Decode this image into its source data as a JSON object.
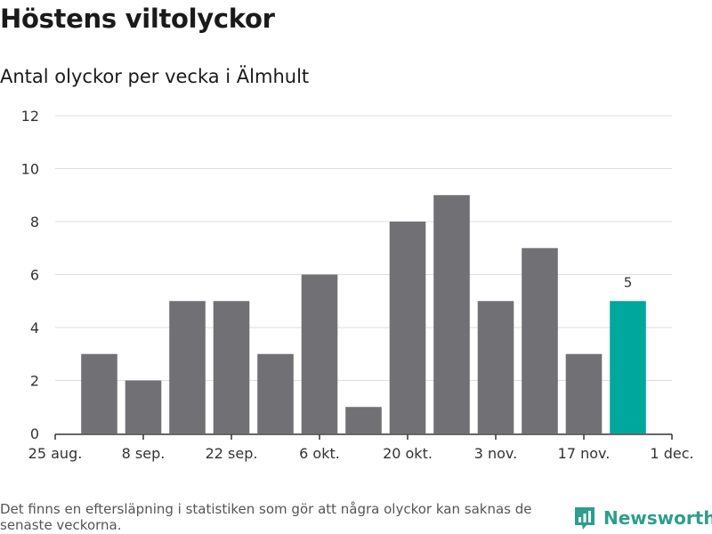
{
  "header": {
    "title": "Höstens viltolyckor",
    "subtitle": "Antal olyckor per vecka i Älmhult"
  },
  "footer": {
    "note": "Det finns en eftersläpning i statistiken som gör att några olyckor kan saknas de senaste veckorna.",
    "brand": "Newsworthy"
  },
  "colors": {
    "bar": "#717075",
    "highlight": "#00a79d",
    "grid": "#dddddd",
    "axis": "#333333",
    "brand": "#2e9e8c"
  },
  "chart_data": {
    "type": "bar",
    "title": "Höstens viltolyckor",
    "subtitle": "Antal olyckor per vecka i Älmhult",
    "xlabel": "",
    "ylabel": "",
    "ylim": [
      0,
      12
    ],
    "yticks": [
      0,
      2,
      4,
      6,
      8,
      10,
      12
    ],
    "grid": true,
    "x_tick_labels": [
      "25 aug.",
      "8 sep.",
      "22 sep.",
      "6 okt.",
      "20 okt.",
      "3 nov.",
      "17 nov.",
      "1 dec."
    ],
    "values": [
      3,
      2,
      5,
      5,
      3,
      6,
      1,
      8,
      9,
      5,
      7,
      3,
      5
    ],
    "highlight_index": 12,
    "data_labels": [
      {
        "index": 12,
        "text": "5"
      }
    ]
  }
}
